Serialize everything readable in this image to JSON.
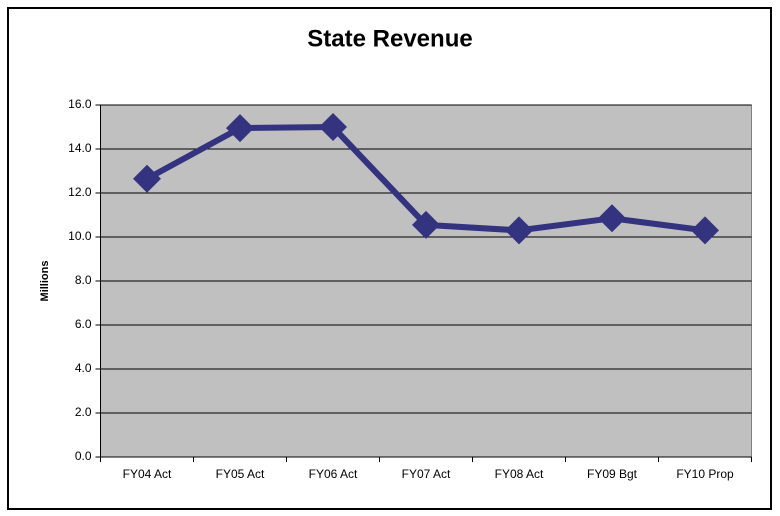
{
  "chart_data": {
    "type": "line",
    "title": "State Revenue",
    "y_label": "Millions",
    "categories": [
      "FY04 Act",
      "FY05 Act",
      "FY06 Act",
      "FY07 Act",
      "FY08 Act",
      "FY09 Bgt",
      "FY10 Prop"
    ],
    "values": [
      12.65,
      14.95,
      15.0,
      10.55,
      10.3,
      10.85,
      10.3
    ],
    "color": "#333380",
    "plot_background": "#c0c0c0",
    "ylim": [
      0,
      16
    ],
    "yticks": [
      {
        "value": 0,
        "label": "0.0"
      },
      {
        "value": 2,
        "label": "2.0"
      },
      {
        "value": 4,
        "label": "4.0"
      },
      {
        "value": 6,
        "label": "6.0"
      },
      {
        "value": 8,
        "label": "8.0"
      },
      {
        "value": 10,
        "label": "10.0"
      },
      {
        "value": 12,
        "label": "12.0"
      },
      {
        "value": 14,
        "label": "14.0"
      },
      {
        "value": 16,
        "label": "16.0"
      }
    ],
    "grid": true
  }
}
